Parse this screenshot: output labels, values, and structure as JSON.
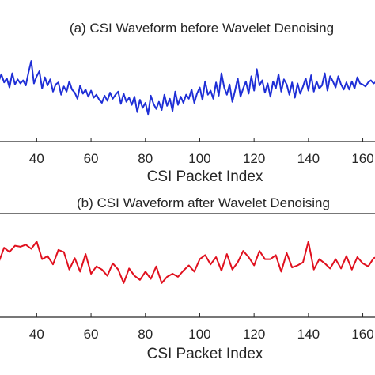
{
  "chart_data": [
    {
      "type": "line",
      "title": "(a)  CSI Waveform before Wavelet Denoising",
      "xlabel": "CSI Packet Index",
      "ylabel": "",
      "xlim": [
        26.5,
        164.5
      ],
      "ylim": [
        0,
        10
      ],
      "xticks": [
        40,
        60,
        80,
        100,
        120,
        140,
        160
      ],
      "grid": false,
      "series": [
        {
          "color": "#1f2fd6",
          "x": [
            26,
            27,
            28,
            29,
            30,
            31,
            32,
            33,
            34,
            35,
            36,
            37,
            38,
            39,
            40,
            41,
            42,
            43,
            44,
            45,
            46,
            47,
            48,
            49,
            50,
            51,
            52,
            53,
            54,
            55,
            56,
            57,
            58,
            59,
            60,
            61,
            62,
            63,
            64,
            65,
            66,
            67,
            68,
            69,
            70,
            71,
            72,
            73,
            74,
            75,
            76,
            77,
            78,
            79,
            80,
            81,
            82,
            83,
            84,
            85,
            86,
            87,
            88,
            89,
            90,
            91,
            92,
            93,
            94,
            95,
            96,
            97,
            98,
            99,
            100,
            101,
            102,
            103,
            104,
            105,
            106,
            107,
            108,
            109,
            110,
            111,
            112,
            113,
            114,
            115,
            116,
            117,
            118,
            119,
            120,
            121,
            122,
            123,
            124,
            125,
            126,
            127,
            128,
            129,
            130,
            131,
            132,
            133,
            134,
            135,
            136,
            137,
            138,
            139,
            140,
            141,
            142,
            143,
            144,
            145,
            146,
            147,
            148,
            149,
            150,
            151,
            152,
            153,
            154,
            155,
            156,
            157,
            158,
            159,
            160,
            161,
            162,
            163,
            164,
            165
          ],
          "values": [
            5.9,
            6.6,
            5.8,
            6.2,
            5.3,
            6.7,
            5.6,
            6.1,
            5.7,
            6.0,
            5.5,
            6.8,
            7.9,
            5.7,
            6.4,
            6.9,
            5.2,
            6.3,
            5.5,
            6.1,
            4.9,
            5.6,
            5.8,
            4.6,
            5.4,
            4.9,
            5.9,
            5.1,
            4.8,
            4.2,
            5.5,
            4.7,
            5.1,
            4.4,
            5.0,
            4.3,
            4.6,
            4.1,
            3.8,
            4.5,
            4.0,
            4.8,
            4.2,
            4.6,
            4.9,
            3.7,
            4.7,
            3.9,
            4.3,
            3.6,
            4.4,
            2.9,
            4.1,
            3.3,
            3.8,
            2.7,
            4.5,
            3.7,
            3.2,
            3.9,
            3.1,
            4.6,
            3.5,
            4.2,
            3.0,
            4.9,
            3.6,
            4.4,
            3.8,
            4.6,
            4.2,
            5.1,
            3.8,
            4.7,
            5.3,
            4.1,
            5.9,
            4.6,
            5.0,
            4.2,
            5.8,
            4.5,
            6.7,
            5.3,
            4.6,
            5.6,
            3.9,
            5.0,
            6.2,
            4.4,
            5.2,
            5.9,
            4.7,
            6.4,
            5.0,
            7.1,
            5.5,
            6.0,
            4.8,
            5.7,
            4.4,
            5.9,
            5.2,
            6.6,
            4.9,
            6.1,
            5.6,
            4.6,
            5.8,
            4.3,
            5.7,
            4.7,
            5.4,
            6.2,
            5.0,
            6.5,
            4.9,
            5.9,
            5.2,
            5.5,
            6.7,
            5.0,
            6.4,
            5.9,
            5.3,
            6.4,
            5.6,
            5.1,
            5.8,
            5.1,
            5.9,
            5.2,
            6.3,
            5.7,
            5.6,
            5.4,
            5.8,
            6.0,
            5.7,
            5.9
          ]
        }
      ]
    },
    {
      "type": "line",
      "title": "(b)  CSI Waveform after Wavelet Denoising",
      "xlabel": "CSI Packet Index",
      "ylabel": "",
      "xlim": [
        26.5,
        164.5
      ],
      "ylim": [
        0,
        10
      ],
      "xticks": [
        40,
        60,
        80,
        100,
        120,
        140,
        160
      ],
      "grid": false,
      "series": [
        {
          "color": "#e0101e",
          "x": [
            26,
            28,
            30,
            32,
            34,
            36,
            38,
            40,
            42,
            44,
            46,
            48,
            50,
            52,
            54,
            56,
            58,
            60,
            62,
            64,
            66,
            68,
            70,
            72,
            74,
            76,
            78,
            80,
            82,
            84,
            86,
            88,
            90,
            92,
            94,
            96,
            98,
            100,
            102,
            104,
            106,
            108,
            110,
            112,
            114,
            116,
            118,
            120,
            122,
            124,
            126,
            128,
            130,
            132,
            134,
            136,
            138,
            140,
            142,
            144,
            146,
            148,
            150,
            152,
            154,
            156,
            158,
            160,
            162,
            164,
            165
          ],
          "values": [
            5.3,
            6.7,
            6.3,
            6.9,
            6.8,
            7.0,
            6.6,
            7.3,
            5.6,
            5.9,
            5.1,
            6.5,
            6.3,
            4.6,
            5.7,
            4.4,
            6.1,
            4.2,
            4.9,
            4.6,
            4.0,
            5.2,
            4.6,
            3.3,
            4.7,
            4.0,
            3.6,
            4.4,
            3.7,
            4.9,
            3.3,
            3.9,
            4.2,
            3.9,
            4.5,
            5.0,
            4.4,
            5.6,
            6.0,
            5.1,
            5.8,
            4.5,
            6.1,
            4.6,
            5.3,
            6.4,
            5.8,
            5.0,
            6.4,
            5.6,
            5.6,
            6.0,
            4.4,
            6.2,
            4.8,
            5.0,
            5.3,
            7.3,
            4.6,
            5.6,
            5.2,
            4.7,
            5.6,
            4.7,
            5.9,
            4.6,
            5.8,
            5.2,
            4.9,
            5.7,
            5.8
          ]
        }
      ]
    }
  ]
}
